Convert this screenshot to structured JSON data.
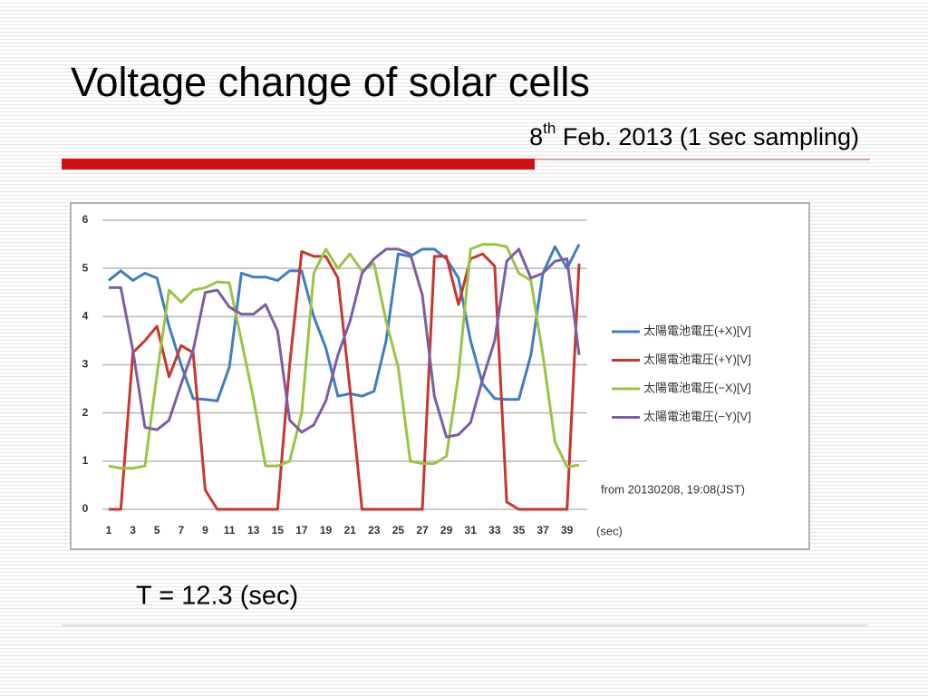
{
  "slide": {
    "title": "Voltage change of solar cells",
    "subtitle": {
      "day": "8",
      "suffix": "th",
      "rest": " Feb. 2013 (1 sec sampling)"
    },
    "note": "T = 12.3 (sec)"
  },
  "chart_data": {
    "type": "line",
    "x": [
      1,
      2,
      3,
      4,
      5,
      6,
      7,
      8,
      9,
      10,
      11,
      12,
      13,
      14,
      15,
      16,
      17,
      18,
      19,
      20,
      21,
      22,
      23,
      24,
      25,
      26,
      27,
      28,
      29,
      30,
      31,
      32,
      33,
      34,
      35,
      36,
      37,
      38,
      39,
      40
    ],
    "xlim": [
      1,
      40
    ],
    "xticks": [
      1,
      3,
      5,
      7,
      9,
      11,
      13,
      15,
      17,
      19,
      21,
      23,
      25,
      27,
      29,
      31,
      33,
      35,
      37,
      39
    ],
    "ylim": [
      0,
      6
    ],
    "yticks": [
      0,
      1,
      2,
      3,
      4,
      5,
      6
    ],
    "grid": true,
    "legend": "right",
    "x_label": "(sec)",
    "annotation": "from 20130208, 19:08(JST)",
    "series": [
      {
        "name": "太陽電池電圧(+X)[V]",
        "color": "#3f7ec0",
        "values": [
          4.75,
          4.95,
          4.75,
          4.9,
          4.8,
          3.8,
          3.0,
          2.3,
          2.28,
          2.25,
          2.95,
          4.9,
          4.82,
          4.82,
          4.75,
          4.95,
          4.95,
          4.0,
          3.35,
          2.35,
          2.4,
          2.35,
          2.45,
          3.5,
          5.3,
          5.25,
          5.4,
          5.4,
          5.2,
          4.8,
          3.5,
          2.6,
          2.3,
          2.28,
          2.28,
          3.2,
          4.9,
          5.45,
          5.0,
          5.5
        ]
      },
      {
        "name": "太陽電池電圧(+Y)[V]",
        "color": "#c8372d",
        "values": [
          0,
          0,
          3.25,
          3.5,
          3.8,
          2.75,
          3.4,
          3.25,
          0.4,
          0,
          0,
          0,
          0,
          0,
          0,
          3.0,
          5.35,
          5.25,
          5.25,
          4.8,
          2.5,
          0,
          0,
          0,
          0,
          0,
          0,
          5.25,
          5.25,
          4.25,
          5.2,
          5.3,
          5.05,
          0.15,
          0,
          0,
          0,
          0,
          0,
          5.1
        ]
      },
      {
        "name": "太陽電池電圧(−X)[V]",
        "color": "#9bc444",
        "values": [
          0.9,
          0.85,
          0.85,
          0.9,
          2.8,
          4.55,
          4.3,
          4.55,
          4.6,
          4.72,
          4.7,
          3.5,
          2.3,
          0.9,
          0.9,
          1.0,
          2.0,
          4.9,
          5.4,
          5.0,
          5.3,
          4.95,
          5.1,
          3.9,
          2.95,
          1.0,
          0.95,
          0.95,
          1.1,
          2.8,
          5.4,
          5.5,
          5.5,
          5.45,
          4.9,
          4.75,
          3.2,
          1.4,
          0.88,
          0.92
        ]
      },
      {
        "name": "太陽電池電圧(−Y)[V]",
        "color": "#7b5ea6",
        "values": [
          4.6,
          4.6,
          3.3,
          1.7,
          1.65,
          1.85,
          2.6,
          3.3,
          4.5,
          4.55,
          4.2,
          4.05,
          4.05,
          4.25,
          3.7,
          1.85,
          1.6,
          1.75,
          2.25,
          3.2,
          3.9,
          4.9,
          5.2,
          5.4,
          5.4,
          5.3,
          4.45,
          2.35,
          1.5,
          1.55,
          1.8,
          2.7,
          3.5,
          5.15,
          5.4,
          4.8,
          4.9,
          5.15,
          5.2,
          3.2
        ]
      }
    ]
  }
}
